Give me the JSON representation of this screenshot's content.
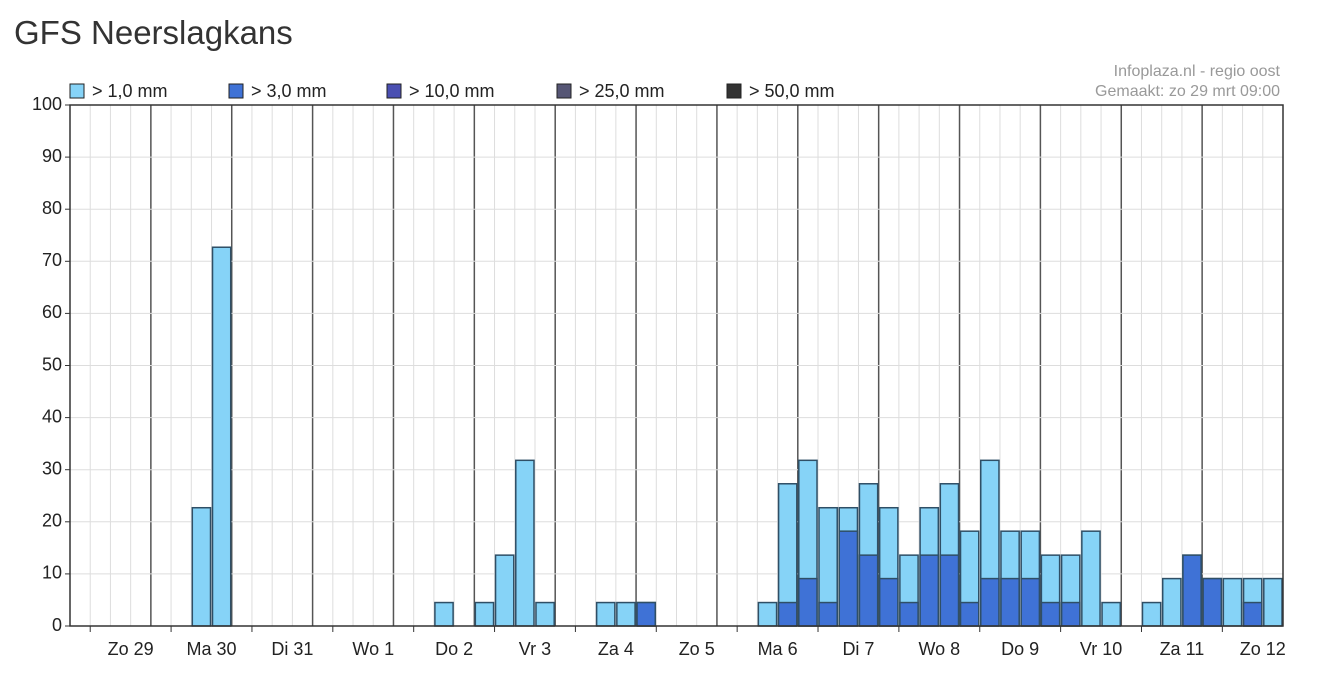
{
  "page_title": "GFS Neerslagkans",
  "chart_data": {
    "type": "bar",
    "source": "Infoplaza.nl - regio oost",
    "made": "Gemaakt: zo 29 mrt 09:00",
    "categories": [
      null,
      null,
      null,
      "Zo 29",
      null,
      null,
      null,
      "Ma 30",
      null,
      null,
      null,
      "Di 31",
      null,
      null,
      null,
      "Wo 1",
      null,
      null,
      null,
      "Do 2",
      null,
      null,
      null,
      "Vr 3",
      null,
      null,
      null,
      "Za 4",
      null,
      null,
      null,
      "Zo 5",
      null,
      null,
      null,
      "Ma 6",
      null,
      null,
      null,
      "Di 7",
      null,
      null,
      null,
      "Wo 8",
      null,
      null,
      null,
      "Do 9",
      null,
      null,
      null,
      "Vr 10",
      null,
      null,
      null,
      "Za 11",
      null,
      null,
      null,
      "Zo 12"
    ],
    "series": [
      {
        "name": "> 1,0 mm",
        "color": "#86d3f7",
        "values": [
          0,
          0,
          0,
          0,
          0,
          0,
          22.7,
          72.7,
          0,
          0,
          0,
          0,
          0,
          0,
          0,
          0,
          0,
          0,
          4.5,
          0,
          4.5,
          13.6,
          31.8,
          4.5,
          0,
          0,
          4.5,
          4.5,
          4.5,
          0,
          0,
          0,
          0,
          0,
          4.5,
          27.3,
          31.8,
          22.7,
          22.7,
          27.3,
          22.7,
          13.6,
          22.7,
          27.3,
          18.2,
          31.8,
          18.2,
          18.2,
          13.6,
          13.6,
          18.2,
          4.5,
          0,
          4.5,
          9.1,
          13.6,
          9.1,
          9.1,
          9.1,
          9.1
        ]
      },
      {
        "name": "> 3,0 mm",
        "color": "#3f72d6",
        "values": [
          0,
          0,
          0,
          0,
          0,
          0,
          0,
          0,
          0,
          0,
          0,
          0,
          0,
          0,
          0,
          0,
          0,
          0,
          0,
          0,
          0,
          0,
          0,
          0,
          0,
          0,
          0,
          0,
          4.5,
          0,
          0,
          0,
          0,
          0,
          0,
          4.5,
          9.1,
          4.5,
          18.2,
          13.6,
          9.1,
          4.5,
          13.6,
          13.6,
          4.5,
          9.1,
          9.1,
          9.1,
          4.5,
          4.5,
          0,
          0,
          0,
          0,
          0,
          13.6,
          9.1,
          0,
          4.5,
          0
        ]
      },
      {
        "name": "> 10,0 mm",
        "color": "#4a4fb2",
        "values": [
          0,
          0,
          0,
          0,
          0,
          0,
          0,
          0,
          0,
          0,
          0,
          0,
          0,
          0,
          0,
          0,
          0,
          0,
          0,
          0,
          0,
          0,
          0,
          0,
          0,
          0,
          0,
          0,
          0,
          0,
          0,
          0,
          0,
          0,
          0,
          0,
          0,
          0,
          0,
          0,
          0,
          0,
          0,
          0,
          0,
          0,
          0,
          0,
          0,
          0,
          0,
          0,
          0,
          0,
          0,
          0,
          0,
          0,
          0,
          0
        ]
      },
      {
        "name": "> 25,0 mm",
        "color": "#565675",
        "values": [
          0,
          0,
          0,
          0,
          0,
          0,
          0,
          0,
          0,
          0,
          0,
          0,
          0,
          0,
          0,
          0,
          0,
          0,
          0,
          0,
          0,
          0,
          0,
          0,
          0,
          0,
          0,
          0,
          0,
          0,
          0,
          0,
          0,
          0,
          0,
          0,
          0,
          0,
          0,
          0,
          0,
          0,
          0,
          0,
          0,
          0,
          0,
          0,
          0,
          0,
          0,
          0,
          0,
          0,
          0,
          0,
          0,
          0,
          0,
          0
        ]
      },
      {
        "name": "> 50,0 mm",
        "color": "#333333",
        "values": [
          0,
          0,
          0,
          0,
          0,
          0,
          0,
          0,
          0,
          0,
          0,
          0,
          0,
          0,
          0,
          0,
          0,
          0,
          0,
          0,
          0,
          0,
          0,
          0,
          0,
          0,
          0,
          0,
          0,
          0,
          0,
          0,
          0,
          0,
          0,
          0,
          0,
          0,
          0,
          0,
          0,
          0,
          0,
          0,
          0,
          0,
          0,
          0,
          0,
          0,
          0,
          0,
          0,
          0,
          0,
          0,
          0,
          0,
          0,
          0
        ]
      }
    ],
    "ylim": [
      0,
      100
    ],
    "yticks": [
      0,
      10,
      20,
      30,
      40,
      50,
      60,
      70,
      80,
      90,
      100
    ],
    "grid": true
  }
}
